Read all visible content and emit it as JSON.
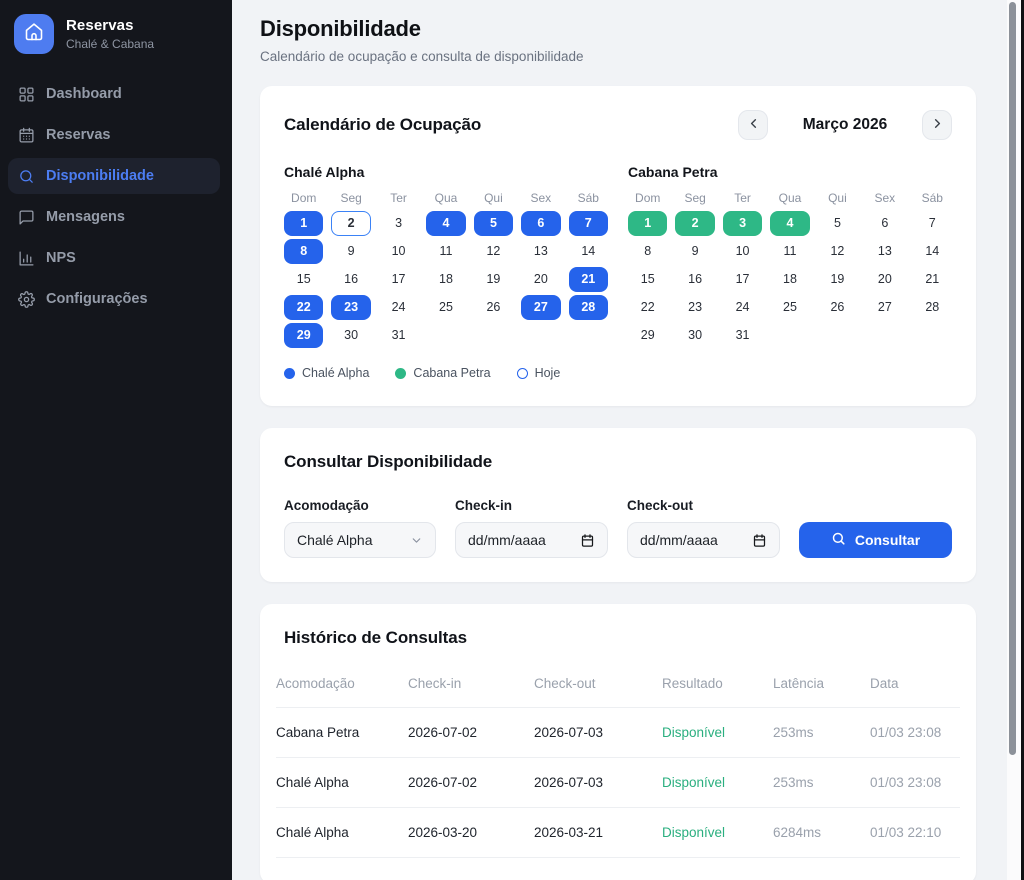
{
  "sidebar": {
    "brand": {
      "title": "Reservas",
      "subtitle": "Chalé & Cabana"
    },
    "items": [
      {
        "label": "Dashboard",
        "icon": "dashboard-icon",
        "active": false
      },
      {
        "label": "Reservas",
        "icon": "calendar-icon",
        "active": false
      },
      {
        "label": "Disponibilidade",
        "icon": "search-icon",
        "active": true
      },
      {
        "label": "Mensagens",
        "icon": "chat-icon",
        "active": false
      },
      {
        "label": "NPS",
        "icon": "bar-chart-icon",
        "active": false
      },
      {
        "label": "Configurações",
        "icon": "gear-icon",
        "active": false
      }
    ]
  },
  "header": {
    "title": "Disponibilidade",
    "subtitle": "Calendário de ocupação e consulta de disponibilidade"
  },
  "calendar_card": {
    "title": "Calendário de Ocupação",
    "prev_label": "previous month",
    "next_label": "next month",
    "month_label": "Março 2026",
    "weekdays": [
      "Dom",
      "Seg",
      "Ter",
      "Qua",
      "Qui",
      "Sex",
      "Sáb"
    ],
    "calendars": [
      {
        "name": "Chalé Alpha",
        "days_in_month": 31,
        "start_weekday": 0,
        "occupied_days": [
          1,
          4,
          5,
          6,
          7,
          8,
          21,
          22,
          23,
          27,
          28,
          29
        ],
        "today": 2,
        "color": "#2563eb"
      },
      {
        "name": "Cabana Petra",
        "days_in_month": 31,
        "start_weekday": 0,
        "occupied_days": [
          1,
          2,
          3,
          4
        ],
        "today": null,
        "color": "#2eb886"
      }
    ],
    "legend": [
      {
        "label": "Chalé Alpha",
        "style": "filled",
        "color": "#2563eb"
      },
      {
        "label": "Cabana Petra",
        "style": "filled",
        "color": "#2eb886"
      },
      {
        "label": "Hoje",
        "style": "outline",
        "color": "#2563eb"
      }
    ]
  },
  "query_card": {
    "title": "Consultar Disponibilidade",
    "accommodation": {
      "label": "Acomodação",
      "value": "Chalé Alpha"
    },
    "checkin": {
      "label": "Check-in",
      "placeholder": "dd/mm/aaaa"
    },
    "checkout": {
      "label": "Check-out",
      "placeholder": "dd/mm/aaaa"
    },
    "submit_label": "Consultar"
  },
  "history_card": {
    "title": "Histórico de Consultas",
    "columns": [
      "Acomodação",
      "Check-in",
      "Check-out",
      "Resultado",
      "Latência",
      "Data"
    ],
    "rows": [
      {
        "accommodation": "Cabana Petra",
        "checkin": "2026-07-02",
        "checkout": "2026-07-03",
        "result": "Disponível",
        "latency": "253ms",
        "date": "01/03 23:08"
      },
      {
        "accommodation": "Chalé Alpha",
        "checkin": "2026-07-02",
        "checkout": "2026-07-03",
        "result": "Disponível",
        "latency": "253ms",
        "date": "01/03 23:08"
      },
      {
        "accommodation": "Chalé Alpha",
        "checkin": "2026-03-20",
        "checkout": "2026-03-21",
        "result": "Disponível",
        "latency": "6284ms",
        "date": "01/03 22:10"
      }
    ]
  },
  "colors": {
    "accent_blue": "#2563eb",
    "green": "#2eb886",
    "today_ring": "#3b82f6",
    "sidebar_bg": "#14161c",
    "result_green": "#2aaf7f"
  }
}
